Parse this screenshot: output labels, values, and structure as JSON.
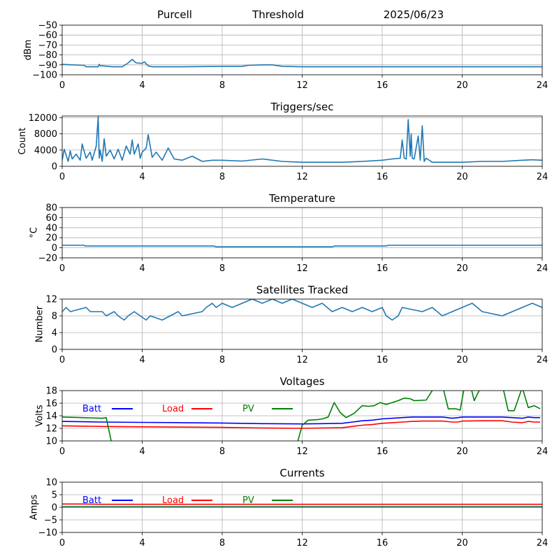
{
  "header": {
    "station": "Purcell",
    "title": "Threshold",
    "date": "2025/06/23"
  },
  "chart_data": [
    {
      "id": "threshold",
      "type": "line",
      "title": "",
      "ylabel": "dBm",
      "xlim": [
        0,
        24
      ],
      "ylim": [
        -100,
        -50
      ],
      "xticks": [
        0,
        4,
        8,
        12,
        16,
        20,
        24
      ],
      "yticks": [
        -100,
        -90,
        -80,
        -70,
        -60,
        -50
      ],
      "ytick_labels": [
        "−100",
        "−90",
        "−80",
        "−70",
        "−60",
        "−50"
      ],
      "grid": true,
      "series": [
        {
          "color": "#1f77b4",
          "x": [
            0,
            0.5,
            1.1,
            1.2,
            1.8,
            1.85,
            1.9,
            2.0,
            2.5,
            3.0,
            3.3,
            3.5,
            3.7,
            4.0,
            4.1,
            4.3,
            4.5,
            5,
            6,
            8,
            9,
            9.3,
            10,
            10.5,
            11,
            12,
            14,
            16,
            18,
            20,
            22,
            24
          ],
          "values": [
            -89.5,
            -90,
            -90.5,
            -92,
            -92,
            -89.5,
            -91,
            -91,
            -92,
            -92,
            -88,
            -84.5,
            -88,
            -88.5,
            -87,
            -91,
            -92,
            -92,
            -92,
            -91.5,
            -91.5,
            -90.5,
            -90,
            -90,
            -91.5,
            -92,
            -92,
            -92,
            -92,
            -92,
            -92,
            -92
          ]
        }
      ]
    },
    {
      "id": "triggers",
      "type": "line",
      "title": "Triggers/sec",
      "ylabel": "Count",
      "xlim": [
        0,
        24
      ],
      "ylim": [
        0,
        12400
      ],
      "xticks": [
        0,
        4,
        8,
        12,
        16,
        20,
        24
      ],
      "yticks": [
        0,
        4000,
        8000,
        12000
      ],
      "ytick_labels": [
        "0",
        "4000",
        "8000",
        "12000"
      ],
      "grid": true,
      "series": [
        {
          "color": "#1f77b4",
          "x": [
            0,
            0.1,
            0.3,
            0.4,
            0.5,
            0.7,
            0.9,
            1.0,
            1.2,
            1.4,
            1.5,
            1.7,
            1.8,
            1.85,
            1.9,
            2.0,
            2.1,
            2.2,
            2.4,
            2.6,
            2.8,
            3.0,
            3.2,
            3.4,
            3.5,
            3.6,
            3.8,
            3.9,
            4.0,
            4.2,
            4.3,
            4.5,
            4.7,
            5.0,
            5.3,
            5.6,
            6.0,
            6.5,
            7.0,
            7.5,
            8.0,
            9.0,
            10.0,
            11.0,
            12.0,
            14.0,
            15.0,
            16.0,
            16.5,
            16.9,
            17.0,
            17.1,
            17.2,
            17.3,
            17.4,
            17.45,
            17.5,
            17.6,
            17.8,
            17.9,
            18.0,
            18.1,
            18.2,
            18.5,
            19.0,
            20.0,
            21.0,
            22.0,
            23.0,
            23.5,
            24.0
          ],
          "values": [
            1500,
            4200,
            1200,
            3800,
            1800,
            3000,
            1500,
            5500,
            2000,
            3500,
            1500,
            5000,
            12200,
            2000,
            4000,
            1200,
            6800,
            2500,
            4000,
            1800,
            4200,
            1500,
            5000,
            3000,
            6500,
            3000,
            5500,
            2000,
            3500,
            4500,
            7800,
            2200,
            3500,
            1500,
            4500,
            1800,
            1500,
            2500,
            1200,
            1500,
            1500,
            1300,
            1800,
            1200,
            1000,
            1000,
            1200,
            1500,
            1800,
            2000,
            6500,
            2000,
            1800,
            11500,
            2500,
            8000,
            2000,
            1800,
            7500,
            1500,
            10000,
            1200,
            2000,
            1000,
            1000,
            1000,
            1200,
            1200,
            1500,
            1600,
            1500
          ]
        }
      ]
    },
    {
      "id": "temperature",
      "type": "line",
      "title": "Temperature",
      "ylabel": "°C",
      "xlim": [
        0,
        24
      ],
      "ylim": [
        -20,
        80
      ],
      "xticks": [
        0,
        4,
        8,
        12,
        16,
        20,
        24
      ],
      "yticks": [
        -20,
        0,
        20,
        40,
        60,
        80
      ],
      "ytick_labels": [
        "−20",
        "0",
        "20",
        "40",
        "60",
        "80"
      ],
      "grid": true,
      "series": [
        {
          "color": "#1f77b4",
          "x": [
            0,
            1.1,
            1.15,
            7.6,
            7.7,
            13.5,
            13.6,
            16.2,
            16.3,
            24
          ],
          "values": [
            5,
            5,
            3.5,
            3.5,
            2,
            2,
            3.5,
            3.5,
            5,
            5
          ]
        }
      ]
    },
    {
      "id": "satellites",
      "type": "line",
      "title": "Satellites Tracked",
      "ylabel": "Number",
      "xlim": [
        0,
        24
      ],
      "ylim": [
        0,
        12
      ],
      "xticks": [
        0,
        4,
        8,
        12,
        16,
        20,
        24
      ],
      "yticks": [
        0,
        4,
        8,
        12
      ],
      "ytick_labels": [
        "0",
        "4",
        "8",
        "12"
      ],
      "grid": true,
      "series": [
        {
          "color": "#1f77b4",
          "x": [
            0,
            0.2,
            0.4,
            1.2,
            1.4,
            2.0,
            2.2,
            2.6,
            2.8,
            3.1,
            3.3,
            3.6,
            3.9,
            4.2,
            4.4,
            5.0,
            5.4,
            5.8,
            6.0,
            7.0,
            7.2,
            7.5,
            7.7,
            8.0,
            8.5,
            9.0,
            9.5,
            10.0,
            10.5,
            11.0,
            11.5,
            12.0,
            12.5,
            13.0,
            13.5,
            14.0,
            14.5,
            15.0,
            15.5,
            16.0,
            16.2,
            16.5,
            16.8,
            17.0,
            18.0,
            18.5,
            19.0,
            19.5,
            20.0,
            20.5,
            21.0,
            22.0,
            22.5,
            23.0,
            23.5,
            24.0
          ],
          "values": [
            9,
            10,
            9,
            10,
            9,
            9,
            8,
            9,
            8,
            7,
            8,
            9,
            8,
            7,
            8,
            7,
            8,
            9,
            8,
            9,
            10,
            11,
            10,
            11,
            10,
            11,
            12,
            11,
            12,
            11,
            12,
            11,
            10,
            11,
            9,
            10,
            9,
            10,
            9,
            10,
            8,
            7,
            8,
            10,
            9,
            10,
            8,
            9,
            10,
            11,
            9,
            8,
            9,
            10,
            11,
            10
          ]
        }
      ]
    },
    {
      "id": "voltages",
      "type": "line",
      "title": "Voltages",
      "ylabel": "Volts",
      "xlim": [
        0,
        24
      ],
      "ylim": [
        10,
        18
      ],
      "xticks": [
        0,
        4,
        8,
        12,
        16,
        20,
        24
      ],
      "yticks": [
        10,
        12,
        14,
        16,
        18
      ],
      "ytick_labels": [
        "10",
        "12",
        "14",
        "16",
        "18"
      ],
      "grid": true,
      "legend": {
        "placement": "top-left",
        "columns": 3
      },
      "series": [
        {
          "name": "Batt",
          "color": "#0000ff",
          "x": [
            0,
            2,
            4,
            6,
            8,
            10,
            12,
            13,
            14,
            14.5,
            15,
            15.5,
            16,
            16.5,
            17,
            17.5,
            18,
            19,
            19.5,
            19.8,
            20,
            21,
            22,
            22.5,
            23,
            23.3,
            23.6,
            23.9
          ],
          "values": [
            13.1,
            13.0,
            12.95,
            12.9,
            12.85,
            12.75,
            12.7,
            12.75,
            12.8,
            13.0,
            13.2,
            13.3,
            13.5,
            13.6,
            13.7,
            13.8,
            13.8,
            13.8,
            13.6,
            13.7,
            13.8,
            13.8,
            13.8,
            13.7,
            13.6,
            13.8,
            13.7,
            13.7
          ]
        },
        {
          "name": "Load",
          "color": "#ff0000",
          "x": [
            0,
            2,
            4,
            6,
            8,
            10,
            12,
            13,
            14,
            14.5,
            15,
            15.5,
            16,
            16.5,
            17,
            17.5,
            18,
            19,
            19.5,
            19.8,
            20,
            21,
            22,
            22.5,
            23,
            23.3,
            23.6,
            23.9
          ],
          "values": [
            12.4,
            12.3,
            12.25,
            12.2,
            12.15,
            12.05,
            12.0,
            12.05,
            12.1,
            12.3,
            12.5,
            12.6,
            12.8,
            12.9,
            13.0,
            13.1,
            13.15,
            13.15,
            13.0,
            13.0,
            13.15,
            13.2,
            13.2,
            13.0,
            12.9,
            13.1,
            13.0,
            13.0
          ]
        },
        {
          "name": "PV",
          "color": "#008000",
          "x": [
            0,
            1,
            2,
            2.2,
            2.45,
            2.6,
            11.7,
            12.0,
            12.3,
            12.8,
            13.0,
            13.3,
            13.6,
            13.9,
            14.2,
            14.6,
            15.0,
            15.3,
            15.6,
            15.9,
            16.2,
            16.5,
            16.8,
            17.1,
            17.4,
            17.6,
            18.2,
            18.6,
            19.0,
            19.3,
            19.7,
            19.9,
            20.1,
            20.4,
            20.6,
            21.0,
            21.5,
            22.0,
            22.3,
            22.6,
            23.0,
            23.3,
            23.6,
            23.9
          ],
          "values": [
            13.8,
            13.7,
            13.6,
            13.7,
            10,
            9,
            9,
            12.5,
            13.3,
            13.4,
            13.5,
            13.8,
            16.1,
            14.5,
            13.7,
            14.4,
            15.6,
            15.5,
            15.6,
            16.1,
            15.8,
            16.1,
            16.4,
            16.8,
            16.7,
            16.4,
            16.5,
            18.5,
            19,
            15.1,
            15.1,
            14.9,
            18.5,
            19,
            16.4,
            19,
            19,
            19,
            14.8,
            14.8,
            18.5,
            15.3,
            15.6,
            15.1
          ]
        }
      ]
    },
    {
      "id": "currents",
      "type": "line",
      "title": "Currents",
      "ylabel": "Amps",
      "xlim": [
        0,
        24
      ],
      "ylim": [
        -10,
        10
      ],
      "xticks": [
        0,
        4,
        8,
        12,
        16,
        20,
        24
      ],
      "yticks": [
        -10,
        -5,
        0,
        5,
        10
      ],
      "ytick_labels": [
        "−10",
        "−5",
        "0",
        "5",
        "10"
      ],
      "grid": true,
      "legend": {
        "placement": "top-left",
        "columns": 3
      },
      "series": [
        {
          "name": "Batt",
          "color": "#0000ff",
          "x": [
            0,
            24
          ],
          "values": [
            0.2,
            0.2
          ]
        },
        {
          "name": "Load",
          "color": "#ff0000",
          "x": [
            0,
            1,
            2,
            4,
            8,
            12,
            16,
            20,
            24
          ],
          "values": [
            1.3,
            1.3,
            1.2,
            1.2,
            1.2,
            1.2,
            1.2,
            1.2,
            1.2
          ]
        },
        {
          "name": "PV",
          "color": "#008000",
          "x": [
            0,
            24
          ],
          "values": [
            0.1,
            0.1
          ]
        }
      ]
    }
  ]
}
